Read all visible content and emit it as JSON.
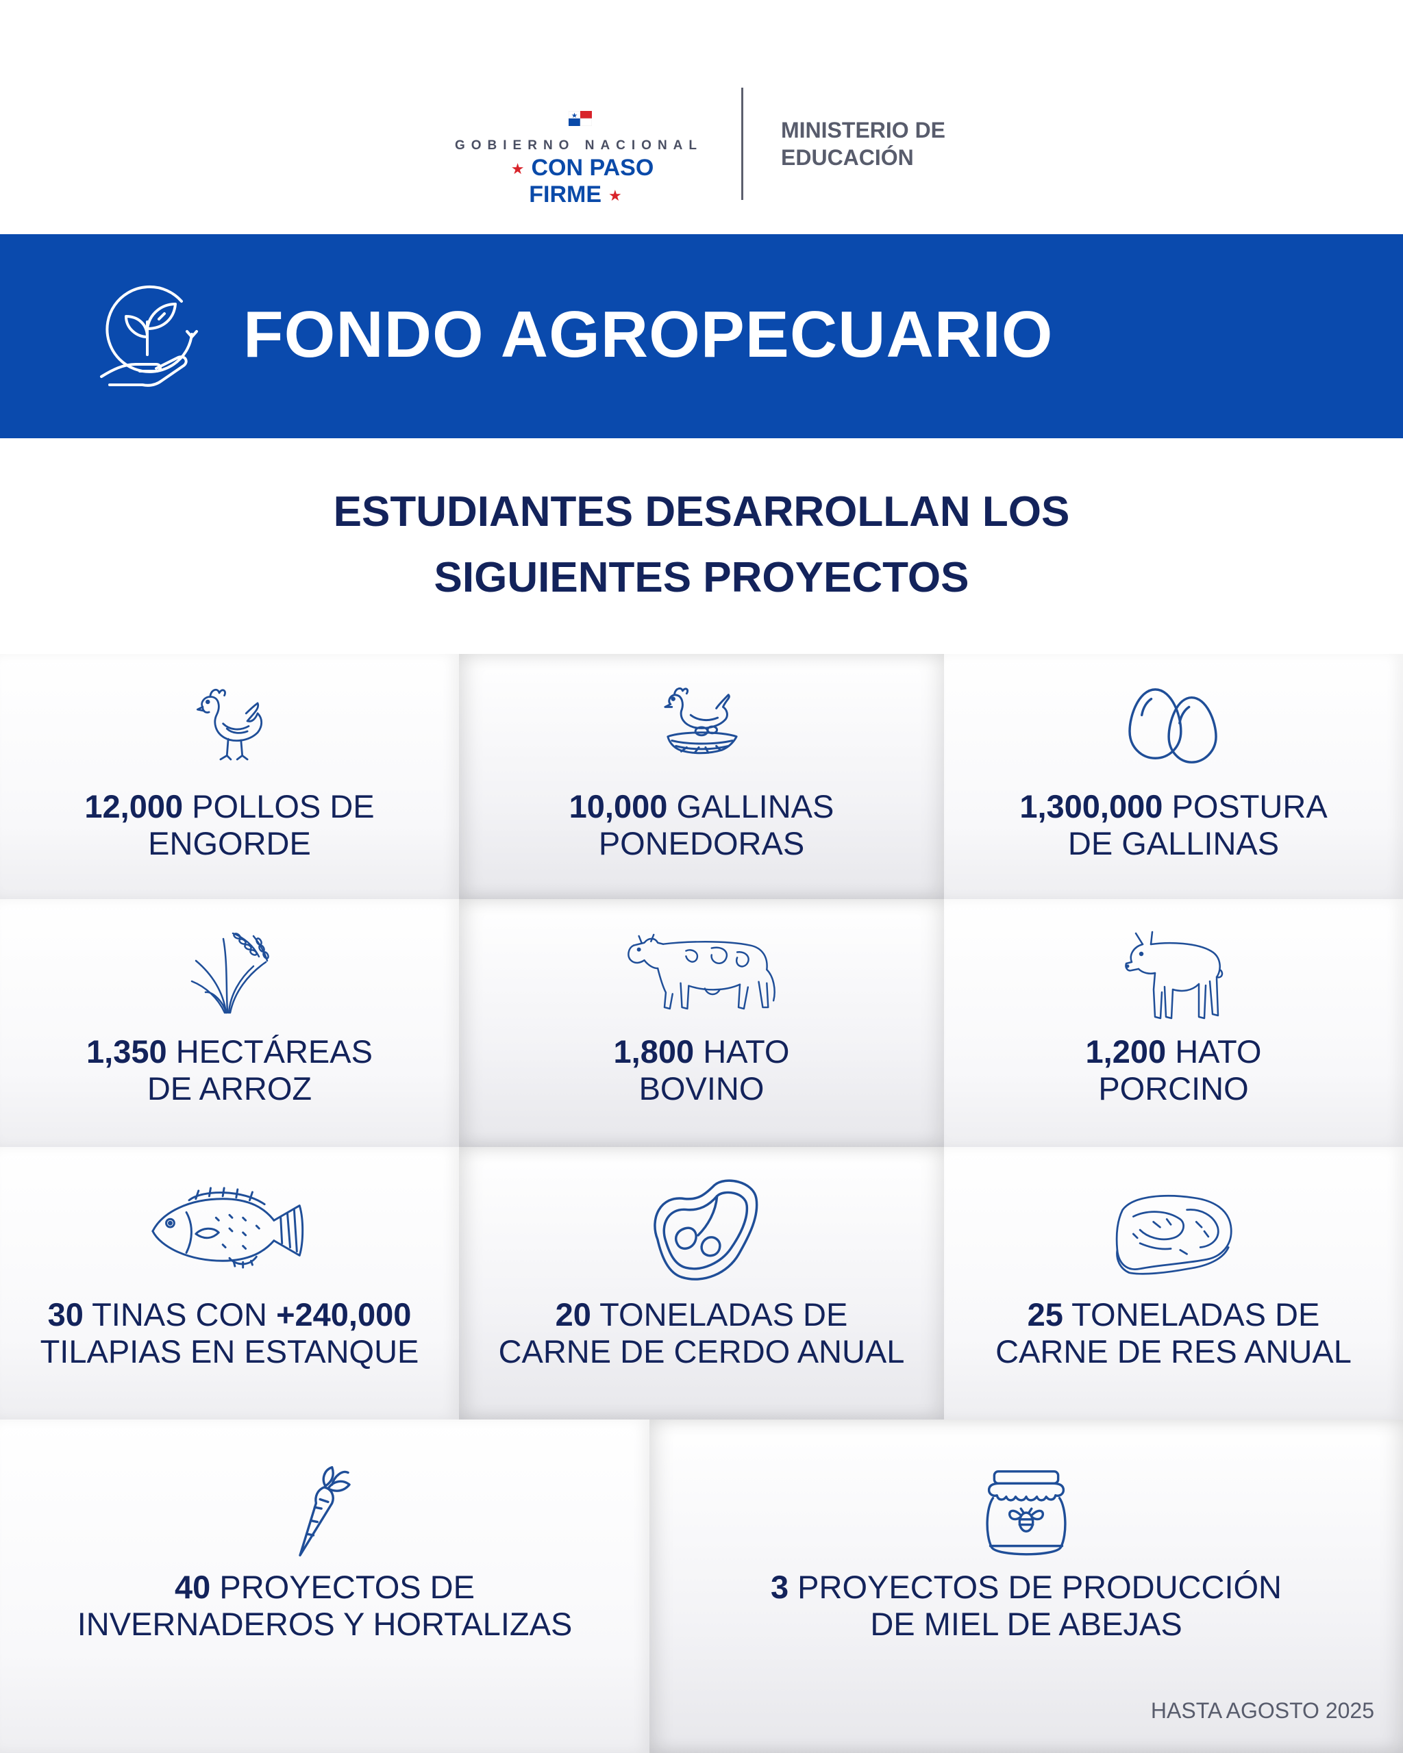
{
  "header": {
    "gov_line1": "GOBIERNO NACIONAL",
    "gov_line2": "CON PASO FIRME",
    "ministry_line1": "MINISTERIO DE",
    "ministry_line2": "EDUCACIÓN"
  },
  "banner": {
    "title": "FONDO AGROPECUARIO",
    "icon": "hand-plant-icon",
    "color": "#0A4AAD"
  },
  "subtitle": {
    "line1": "ESTUDIANTES DESARROLLAN LOS",
    "line2": "SIGUIENTES PROYECTOS"
  },
  "projects": [
    {
      "icon": "chicken-icon",
      "number": "12,000",
      "text1": " POLLOS DE",
      "text2": "ENGORDE"
    },
    {
      "icon": "hen-nest-icon",
      "number": "10,000",
      "text1": " GALLINAS",
      "text2": "PONEDORAS"
    },
    {
      "icon": "eggs-icon",
      "number": "1,300,000",
      "text1": " POSTURA",
      "text2": "DE GALLINAS"
    },
    {
      "icon": "rice-plant-icon",
      "number": "1,350",
      "text1": " HECTÁREAS",
      "text2": "DE ARROZ"
    },
    {
      "icon": "cow-icon",
      "number": "1,800",
      "text1": " HATO",
      "text2": "BOVINO"
    },
    {
      "icon": "pig-icon",
      "number": "1,200",
      "text1": " HATO",
      "text2": "PORCINO"
    },
    {
      "icon": "fish-icon",
      "number": "30",
      "text1": " TINAS CON ",
      "number2": "+240,000",
      "text2": "TILAPIAS EN ESTANQUE"
    },
    {
      "icon": "pork-steak-icon",
      "number": "20",
      "text1": " TONELADAS DE",
      "text2": "CARNE DE CERDO ANUAL"
    },
    {
      "icon": "beef-meat-icon",
      "number": "25",
      "text1": " TONELADAS DE",
      "text2": "CARNE DE RES ANUAL"
    },
    {
      "icon": "carrot-icon",
      "number": "40",
      "text1": " PROYECTOS DE",
      "text2": "INVERNADEROS Y HORTALIZAS"
    },
    {
      "icon": "honey-jar-icon",
      "number": "3",
      "text1": " PROYECTOS DE PRODUCCIÓN",
      "text2": "DE MIEL DE ABEJAS"
    }
  ],
  "footer": {
    "note": "HASTA AGOSTO 2025"
  },
  "colors": {
    "navy": "#13235B",
    "icon_blue": "#1F4E98",
    "accent_red": "#D8232A"
  }
}
